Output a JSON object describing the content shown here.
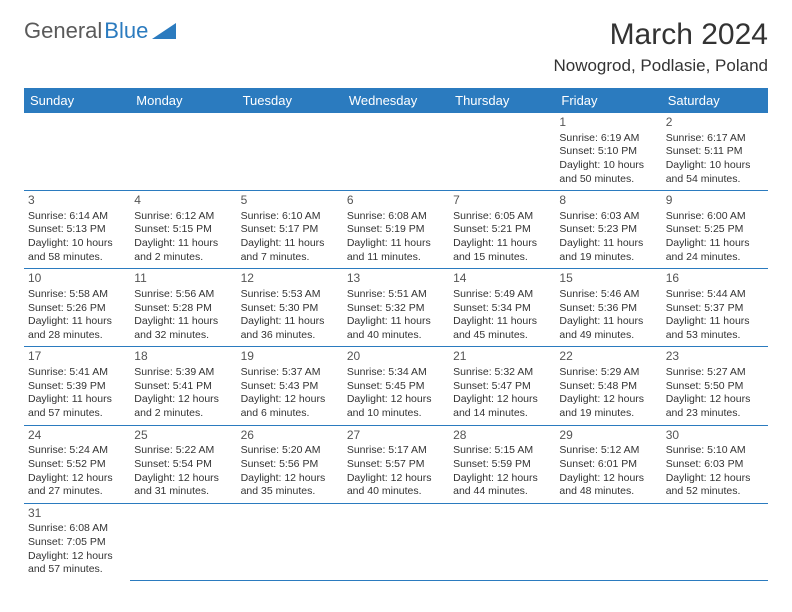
{
  "logo": {
    "text1": "General",
    "text2": "Blue",
    "shape_color": "#2b7bbf"
  },
  "title": "March 2024",
  "location": "Nowogrod, Podlasie, Poland",
  "day_headers": [
    "Sunday",
    "Monday",
    "Tuesday",
    "Wednesday",
    "Thursday",
    "Friday",
    "Saturday"
  ],
  "header_bg": "#2b7bbf",
  "header_fg": "#ffffff",
  "border_color": "#2b7bbf",
  "weeks": [
    [
      null,
      null,
      null,
      null,
      null,
      {
        "n": "1",
        "sr": "Sunrise: 6:19 AM",
        "ss": "Sunset: 5:10 PM",
        "dl": "Daylight: 10 hours and 50 minutes."
      },
      {
        "n": "2",
        "sr": "Sunrise: 6:17 AM",
        "ss": "Sunset: 5:11 PM",
        "dl": "Daylight: 10 hours and 54 minutes."
      }
    ],
    [
      {
        "n": "3",
        "sr": "Sunrise: 6:14 AM",
        "ss": "Sunset: 5:13 PM",
        "dl": "Daylight: 10 hours and 58 minutes."
      },
      {
        "n": "4",
        "sr": "Sunrise: 6:12 AM",
        "ss": "Sunset: 5:15 PM",
        "dl": "Daylight: 11 hours and 2 minutes."
      },
      {
        "n": "5",
        "sr": "Sunrise: 6:10 AM",
        "ss": "Sunset: 5:17 PM",
        "dl": "Daylight: 11 hours and 7 minutes."
      },
      {
        "n": "6",
        "sr": "Sunrise: 6:08 AM",
        "ss": "Sunset: 5:19 PM",
        "dl": "Daylight: 11 hours and 11 minutes."
      },
      {
        "n": "7",
        "sr": "Sunrise: 6:05 AM",
        "ss": "Sunset: 5:21 PM",
        "dl": "Daylight: 11 hours and 15 minutes."
      },
      {
        "n": "8",
        "sr": "Sunrise: 6:03 AM",
        "ss": "Sunset: 5:23 PM",
        "dl": "Daylight: 11 hours and 19 minutes."
      },
      {
        "n": "9",
        "sr": "Sunrise: 6:00 AM",
        "ss": "Sunset: 5:25 PM",
        "dl": "Daylight: 11 hours and 24 minutes."
      }
    ],
    [
      {
        "n": "10",
        "sr": "Sunrise: 5:58 AM",
        "ss": "Sunset: 5:26 PM",
        "dl": "Daylight: 11 hours and 28 minutes."
      },
      {
        "n": "11",
        "sr": "Sunrise: 5:56 AM",
        "ss": "Sunset: 5:28 PM",
        "dl": "Daylight: 11 hours and 32 minutes."
      },
      {
        "n": "12",
        "sr": "Sunrise: 5:53 AM",
        "ss": "Sunset: 5:30 PM",
        "dl": "Daylight: 11 hours and 36 minutes."
      },
      {
        "n": "13",
        "sr": "Sunrise: 5:51 AM",
        "ss": "Sunset: 5:32 PM",
        "dl": "Daylight: 11 hours and 40 minutes."
      },
      {
        "n": "14",
        "sr": "Sunrise: 5:49 AM",
        "ss": "Sunset: 5:34 PM",
        "dl": "Daylight: 11 hours and 45 minutes."
      },
      {
        "n": "15",
        "sr": "Sunrise: 5:46 AM",
        "ss": "Sunset: 5:36 PM",
        "dl": "Daylight: 11 hours and 49 minutes."
      },
      {
        "n": "16",
        "sr": "Sunrise: 5:44 AM",
        "ss": "Sunset: 5:37 PM",
        "dl": "Daylight: 11 hours and 53 minutes."
      }
    ],
    [
      {
        "n": "17",
        "sr": "Sunrise: 5:41 AM",
        "ss": "Sunset: 5:39 PM",
        "dl": "Daylight: 11 hours and 57 minutes."
      },
      {
        "n": "18",
        "sr": "Sunrise: 5:39 AM",
        "ss": "Sunset: 5:41 PM",
        "dl": "Daylight: 12 hours and 2 minutes."
      },
      {
        "n": "19",
        "sr": "Sunrise: 5:37 AM",
        "ss": "Sunset: 5:43 PM",
        "dl": "Daylight: 12 hours and 6 minutes."
      },
      {
        "n": "20",
        "sr": "Sunrise: 5:34 AM",
        "ss": "Sunset: 5:45 PM",
        "dl": "Daylight: 12 hours and 10 minutes."
      },
      {
        "n": "21",
        "sr": "Sunrise: 5:32 AM",
        "ss": "Sunset: 5:47 PM",
        "dl": "Daylight: 12 hours and 14 minutes."
      },
      {
        "n": "22",
        "sr": "Sunrise: 5:29 AM",
        "ss": "Sunset: 5:48 PM",
        "dl": "Daylight: 12 hours and 19 minutes."
      },
      {
        "n": "23",
        "sr": "Sunrise: 5:27 AM",
        "ss": "Sunset: 5:50 PM",
        "dl": "Daylight: 12 hours and 23 minutes."
      }
    ],
    [
      {
        "n": "24",
        "sr": "Sunrise: 5:24 AM",
        "ss": "Sunset: 5:52 PM",
        "dl": "Daylight: 12 hours and 27 minutes."
      },
      {
        "n": "25",
        "sr": "Sunrise: 5:22 AM",
        "ss": "Sunset: 5:54 PM",
        "dl": "Daylight: 12 hours and 31 minutes."
      },
      {
        "n": "26",
        "sr": "Sunrise: 5:20 AM",
        "ss": "Sunset: 5:56 PM",
        "dl": "Daylight: 12 hours and 35 minutes."
      },
      {
        "n": "27",
        "sr": "Sunrise: 5:17 AM",
        "ss": "Sunset: 5:57 PM",
        "dl": "Daylight: 12 hours and 40 minutes."
      },
      {
        "n": "28",
        "sr": "Sunrise: 5:15 AM",
        "ss": "Sunset: 5:59 PM",
        "dl": "Daylight: 12 hours and 44 minutes."
      },
      {
        "n": "29",
        "sr": "Sunrise: 5:12 AM",
        "ss": "Sunset: 6:01 PM",
        "dl": "Daylight: 12 hours and 48 minutes."
      },
      {
        "n": "30",
        "sr": "Sunrise: 5:10 AM",
        "ss": "Sunset: 6:03 PM",
        "dl": "Daylight: 12 hours and 52 minutes."
      }
    ],
    [
      {
        "n": "31",
        "sr": "Sunrise: 6:08 AM",
        "ss": "Sunset: 7:05 PM",
        "dl": "Daylight: 12 hours and 57 minutes."
      },
      null,
      null,
      null,
      null,
      null,
      null
    ]
  ]
}
